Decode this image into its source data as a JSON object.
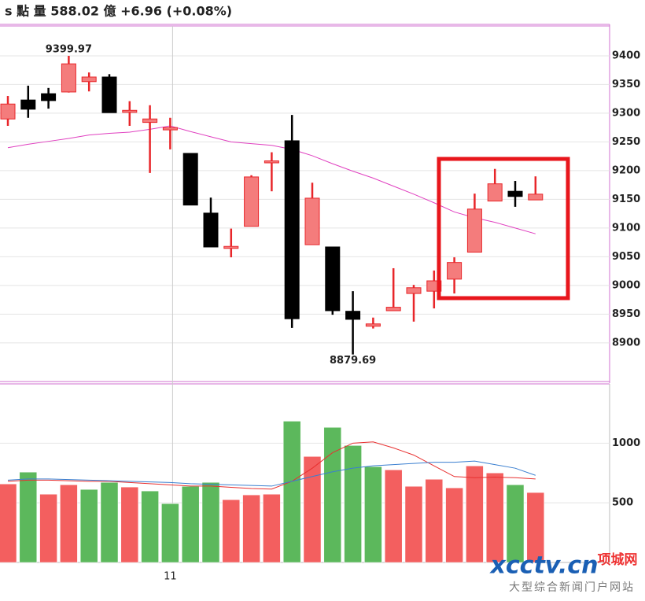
{
  "chart_data": {
    "type": "candlestick",
    "title": "s 點 量 588.02 億  +6.96 (+0.08%)",
    "categories": [
      null,
      null,
      null,
      null,
      null,
      null,
      null,
      null,
      "11",
      null,
      null,
      null,
      null,
      null,
      null,
      null,
      null,
      null,
      null,
      null,
      null,
      null,
      null,
      null,
      null,
      null,
      null
    ],
    "open": [
      9290,
      9323,
      9334,
      9337,
      9355,
      9363,
      9305,
      9284,
      9271,
      9230,
      9126,
      9066,
      9103,
      9215,
      9252,
      9071,
      9067,
      8955,
      8929,
      8956,
      8986,
      8990,
      9011,
      9058,
      9147,
      9164,
      9149
    ],
    "high": [
      9330,
      9348,
      9344,
      9399.97,
      9371,
      9368,
      9321,
      9314,
      9292,
      9230,
      9153,
      9099,
      9192,
      9232,
      9297,
      9179,
      9067,
      8990,
      8944,
      9030,
      9001,
      9026,
      9049,
      9160,
      9203,
      9182,
      9190
    ],
    "low": [
      9278,
      9292,
      9308,
      9336,
      9338,
      9301,
      9278,
      9196,
      9237,
      9140,
      9067,
      9049,
      9103,
      9164,
      8926,
      9071,
      8949,
      8879.69,
      8925,
      8956,
      8937,
      8960,
      8986,
      9058,
      9147,
      9137,
      9149
    ],
    "close": [
      9316,
      9307,
      9322,
      9386,
      9363,
      9301,
      9305,
      9290,
      9275,
      9140,
      9067,
      9068,
      9189,
      9217,
      8942,
      9152,
      8956,
      8941,
      8933,
      8962,
      8996,
      9008,
      9040,
      9133,
      9177,
      9155,
      9159
    ],
    "ma": [
      9240,
      9246,
      9251,
      9256,
      9262,
      9265,
      9267,
      9272,
      9278,
      9268,
      9259,
      9250,
      9247,
      9244,
      9237,
      9226,
      9212,
      9199,
      9187,
      9173,
      9159,
      9144,
      9128,
      9118,
      9110,
      9100,
      9090
    ],
    "up_color": "#f47c7c",
    "up_edge": "#e8262a",
    "down_color": "#000000",
    "ma_color": "#e040c0",
    "ylim": [
      8834,
      9452
    ],
    "yticks": [
      8900,
      8950,
      9000,
      9050,
      9100,
      9150,
      9200,
      9250,
      9300,
      9350,
      9400
    ],
    "volume": {
      "values": [
        658,
        757,
        572,
        651,
        612,
        671,
        632,
        599,
        493,
        638,
        671,
        526,
        566,
        572,
        1184,
        888,
        1132,
        980,
        803,
        776,
        638,
        697,
        625,
        809,
        750,
        651,
        586
      ],
      "colors": [
        "#f35f5f",
        "#5cb85c",
        "#f35f5f",
        "#f35f5f",
        "#5cb85c",
        "#5cb85c",
        "#f35f5f",
        "#5cb85c",
        "#5cb85c",
        "#5cb85c",
        "#5cb85c",
        "#f35f5f",
        "#f35f5f",
        "#f35f5f",
        "#5cb85c",
        "#f35f5f",
        "#5cb85c",
        "#5cb85c",
        "#5cb85c",
        "#f35f5f",
        "#f35f5f",
        "#f35f5f",
        "#f35f5f",
        "#f35f5f",
        "#f35f5f",
        "#5cb85c",
        "#f35f5f"
      ],
      "series": [
        {
          "color": "#e83030",
          "values": [
            680,
            690,
            690,
            685,
            680,
            680,
            670,
            660,
            650,
            640,
            640,
            630,
            620,
            615,
            680,
            790,
            920,
            1000,
            1010,
            960,
            900,
            810,
            720,
            710,
            715,
            710,
            700
          ]
        },
        {
          "color": "#3a7fd0",
          "values": [
            690,
            700,
            700,
            695,
            690,
            685,
            680,
            675,
            670,
            660,
            655,
            650,
            645,
            640,
            680,
            720,
            760,
            790,
            810,
            820,
            830,
            840,
            840,
            850,
            820,
            790,
            730
          ]
        }
      ],
      "ylim": [
        0,
        1490
      ],
      "yticks": [
        500,
        1000
      ]
    },
    "watermark": {
      "logo": "xcctv.cn",
      "brand": "项城网",
      "slogan": "大型综合新闻门户网站"
    }
  }
}
